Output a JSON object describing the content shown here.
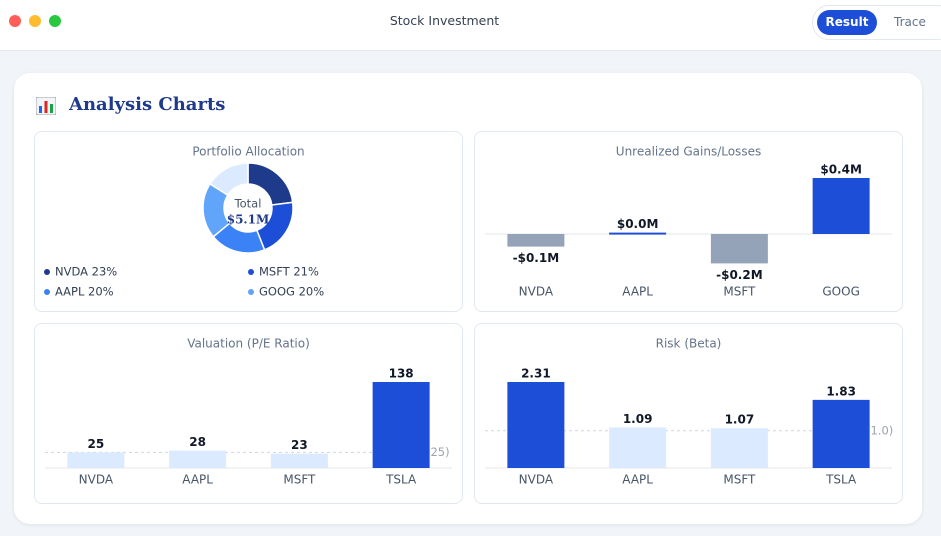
{
  "window": {
    "title": "Stock Investment",
    "tabs": [
      "Result",
      "Trace"
    ]
  },
  "panel": {
    "title": "Analysis Charts"
  },
  "chart_data": [
    {
      "type": "donut",
      "title": "Portfolio Allocation",
      "center_label": "Total",
      "center_value": "$5.1M",
      "values": [
        23,
        21,
        20,
        20,
        16
      ],
      "colors": [
        "#1e3a8a",
        "#1d4ed8",
        "#3b82f6",
        "#60a5fa",
        "#dbeafe"
      ],
      "legend": [
        "NVDA 23%",
        "MSFT 21%",
        "AAPL 20%",
        "GOOG 20%"
      ]
    },
    {
      "type": "bar",
      "title": "Unrealized Gains/Losses",
      "categories": [
        "NVDA",
        "AAPL",
        "MSFT",
        "GOOG"
      ],
      "values": [
        -0.09,
        0.01,
        -0.21,
        0.4
      ],
      "value_labels": [
        "-$0.1M",
        "$0.0M",
        "-$0.2M",
        "$0.4M"
      ],
      "colors": [
        "#94a3b8",
        "#1d4ed8",
        "#94a3b8",
        "#1d4ed8"
      ]
    },
    {
      "type": "bar",
      "title": "Valuation (P/E Ratio)",
      "categories": [
        "NVDA",
        "AAPL",
        "MSFT",
        "TSLA"
      ],
      "values": [
        25,
        28,
        23,
        138
      ],
      "colors": [
        "#dbeafe",
        "#dbeafe",
        "#dbeafe",
        "#1d4ed8"
      ],
      "reference": {
        "value": 25,
        "label": "(25)"
      }
    },
    {
      "type": "bar",
      "title": "Risk (Beta)",
      "categories": [
        "NVDA",
        "AAPL",
        "MSFT",
        "TSLA"
      ],
      "values": [
        2.31,
        1.09,
        1.07,
        1.83
      ],
      "colors": [
        "#1d4ed8",
        "#dbeafe",
        "#dbeafe",
        "#1d4ed8"
      ],
      "reference": {
        "value": 1.0,
        "label": "(1.0)"
      }
    }
  ]
}
